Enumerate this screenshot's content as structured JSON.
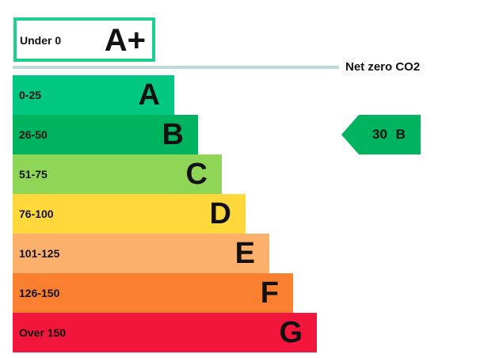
{
  "chart_data": {
    "type": "bar",
    "top_band": {
      "range": "Under 0",
      "letter": "A+",
      "color": "#1ecf8f"
    },
    "net_zero_label": "Net zero CO2",
    "bands": [
      {
        "range": "0-25",
        "letter": "A",
        "color": "#00c882"
      },
      {
        "range": "26-50",
        "letter": "B",
        "color": "#00b35f"
      },
      {
        "range": "51-75",
        "letter": "C",
        "color": "#8fd656"
      },
      {
        "range": "76-100",
        "letter": "D",
        "color": "#ffd93b"
      },
      {
        "range": "101-125",
        "letter": "E",
        "color": "#fdb06c"
      },
      {
        "range": "126-150",
        "letter": "F",
        "color": "#fa8030"
      },
      {
        "range": "Over 150",
        "letter": "G",
        "color": "#f2163c"
      }
    ],
    "current": {
      "value": "30",
      "letter": "B",
      "label": "30 B",
      "color": "#00b35f"
    }
  }
}
